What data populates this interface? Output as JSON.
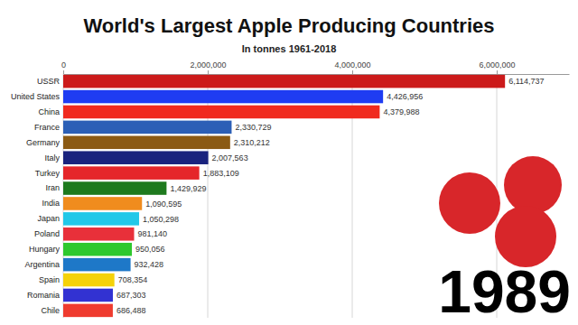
{
  "chart_data": {
    "type": "bar",
    "orientation": "horizontal",
    "title": "World's Largest Apple Producing Countries",
    "subtitle": "In tonnes 1961-2018",
    "annotations": [
      "1989"
    ],
    "categories": [
      "USSR",
      "United States",
      "China",
      "France",
      "Germany",
      "Italy",
      "Turkey",
      "Iran",
      "India",
      "Japan",
      "Poland",
      "Hungary",
      "Argentina",
      "Spain",
      "Romania",
      "Chile"
    ],
    "values": [
      6114737,
      4426956,
      4379988,
      2330729,
      2310212,
      2007563,
      1883109,
      1429929,
      1090595,
      1050298,
      981140,
      950056,
      932428,
      708354,
      687303,
      686488
    ],
    "value_labels": [
      "6,114,737",
      "4,426,956",
      "4,379,988",
      "2,330,729",
      "2,310,212",
      "2,007,563",
      "1,883,109",
      "1,429,929",
      "1,090,595",
      "1,050,298",
      "981,140",
      "950,056",
      "932,428",
      "708,354",
      "687,303",
      "686,488"
    ],
    "colors": [
      "#cc1a1a",
      "#1f3cf2",
      "#f02a1e",
      "#2c5fb6",
      "#8b5a14",
      "#1a237e",
      "#e5262a",
      "#1e7a1e",
      "#f08c1e",
      "#22c8e8",
      "#e8303a",
      "#2ec82e",
      "#1e78c8",
      "#f5d20a",
      "#3232d2",
      "#ef3b2e"
    ],
    "xlim": [
      0,
      7000000
    ],
    "xticks": [
      0,
      {
        "value": 2000000,
        "label": "2,000,000"
      },
      {
        "value": 4000000,
        "label": "4,000,000"
      },
      {
        "value": 6000000,
        "label": "6,000,000"
      }
    ],
    "grid": true,
    "data_labels": true
  }
}
